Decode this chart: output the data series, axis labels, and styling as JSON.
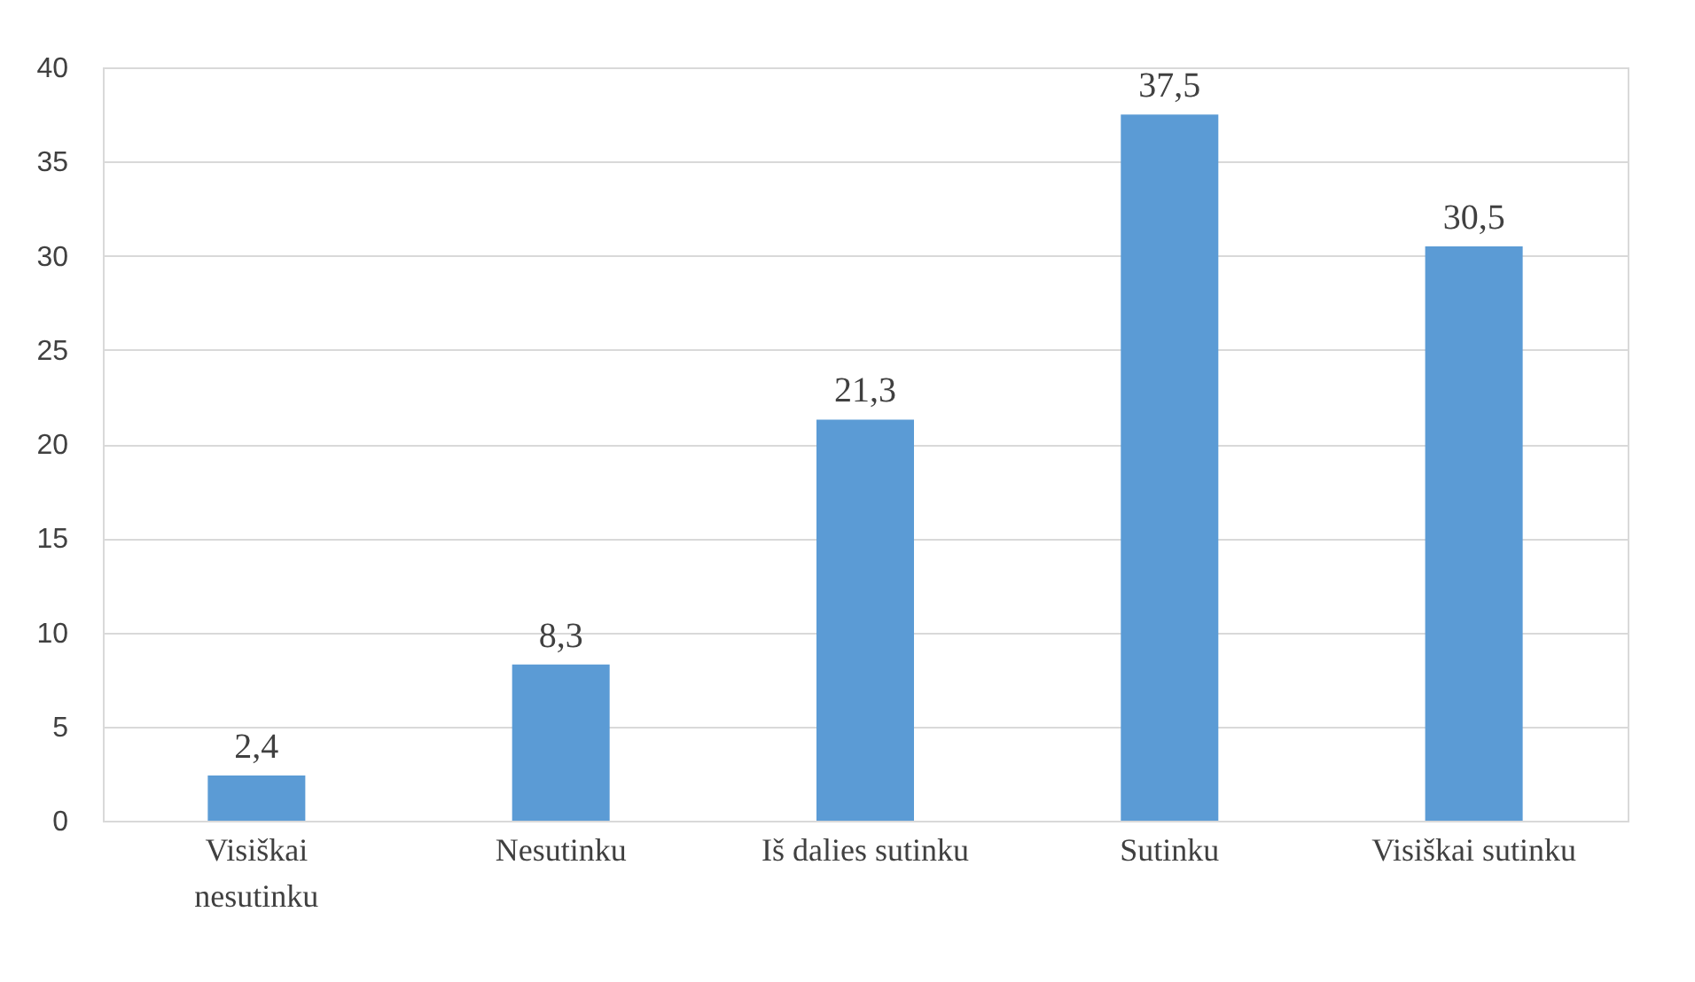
{
  "chart_data": {
    "type": "bar",
    "categories": [
      "Visiškai nesutinku",
      "Nesutinku",
      "Iš dalies sutinku",
      "Sutinku",
      "Visiškai sutinku"
    ],
    "values": [
      2.4,
      8.3,
      21.3,
      37.5,
      30.5
    ],
    "value_labels": [
      "2,4",
      "8,3",
      "21,3",
      "37,5",
      "30,5"
    ],
    "color": "#5b9bd5",
    "ylim": [
      0,
      40
    ],
    "yticks": [
      0,
      5,
      10,
      15,
      20,
      25,
      30,
      35,
      40
    ],
    "grid": "y"
  }
}
